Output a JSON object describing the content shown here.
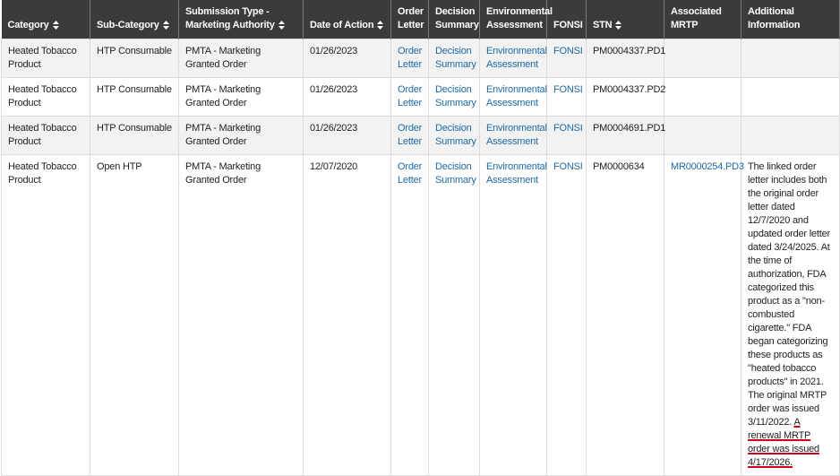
{
  "table": {
    "headers": [
      "Category",
      "Sub-Category",
      "Submission Type - Marketing Authority",
      "Date of Action",
      "Order Letter",
      "Decision Summary",
      "Environmental Assessment",
      "FONSI",
      "STN",
      "Associated MRTP",
      "Additional Information"
    ],
    "rows": [
      [
        "Heated Tobacco Product",
        "HTP Consumable",
        "PMTA - Marketing Granted Order",
        "01/26/2023",
        "Order Letter",
        "Decision Summary",
        "Environmental Assessment",
        "FONSI",
        "PM0004337.PD1",
        null,
        null
      ],
      [
        "Heated Tobacco Product",
        "HTP Consumable",
        "PMTA - Marketing Granted Order",
        "01/26/2023",
        "Order Letter",
        "Decision Summary",
        "Environmental Assessment",
        "FONSI",
        "PM0004337.PD2",
        null,
        null
      ],
      [
        "Heated Tobacco Product",
        "HTP Consumable",
        "PMTA - Marketing Granted Order",
        "01/26/2023",
        "Order Letter",
        "Decision Summary",
        "Environmental Assessment",
        "FONSI",
        "PM0004691.PD1",
        null,
        null
      ],
      [
        "Heated Tobacco Product",
        "Open HTP",
        "PMTA - Marketing Granted Order",
        "12/07/2020",
        "Order Letter",
        "Decision Summary",
        "Environmental Assessment",
        "FONSI",
        "PM0000634",
        "MR0000254.PD3",
        {
          "text": "The linked order letter includes both the original order letter dated 12/7/2020 and updated order letter dated 3/24/2025. At the time of authorization, FDA categorized this product as a \"non-combusted cigarette.\" FDA began categorizing these products as \"heated tobacco products\" in 2021. The original MRTP order was issued 3/11/2022.",
          "highlight": "A renewal MRTP order was issued 4/17/2026."
        }
      ]
    ]
  }
}
